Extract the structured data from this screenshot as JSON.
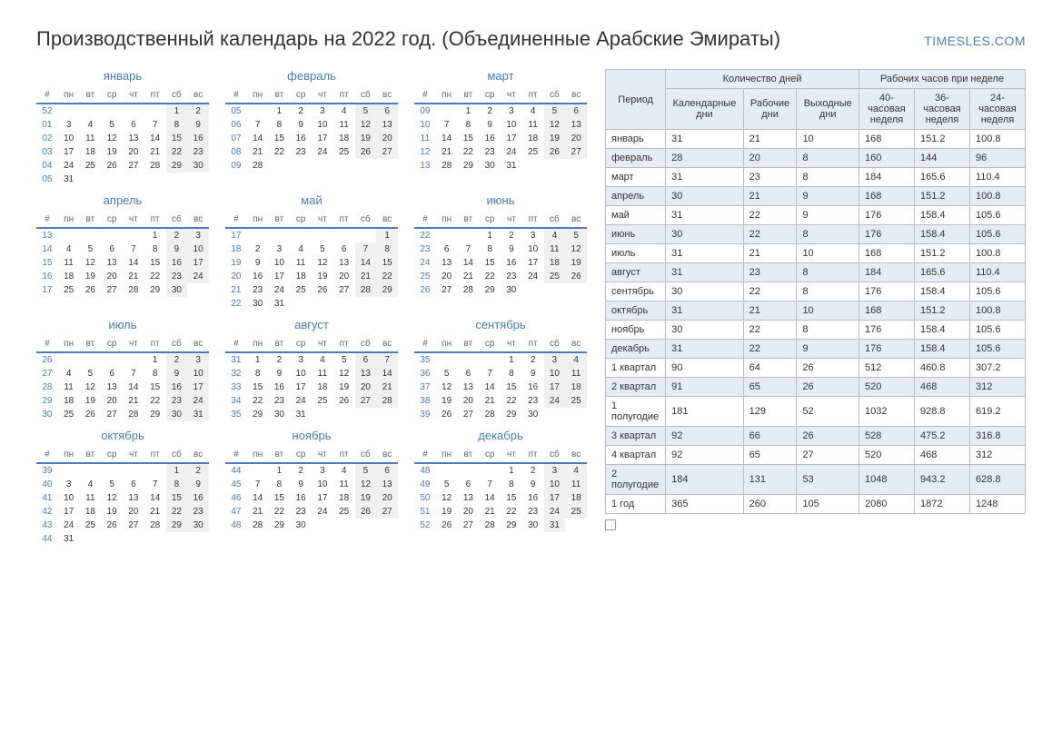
{
  "header": {
    "title": "Производственный календарь на 2022 год. (Объединенные Арабские Эмираты)",
    "brand": "TIMESLES.COM"
  },
  "colors": {
    "accent": "#4a7bb8",
    "weekend_bg": "#f0f0f0",
    "table_header_bg": "#e6ecf5",
    "border": "#bbbbbb"
  },
  "dow_labels": [
    "#",
    "пн",
    "вт",
    "ср",
    "чт",
    "пт",
    "сб",
    "вс"
  ],
  "months": [
    {
      "name": "январь",
      "weeks": [
        [
          "52",
          "",
          "",
          "",
          "",
          "",
          "1",
          "2"
        ],
        [
          "01",
          "3",
          "4",
          "5",
          "6",
          "7",
          "8",
          "9"
        ],
        [
          "02",
          "10",
          "11",
          "12",
          "13",
          "14",
          "15",
          "16"
        ],
        [
          "03",
          "17",
          "18",
          "19",
          "20",
          "21",
          "22",
          "23"
        ],
        [
          "04",
          "24",
          "25",
          "26",
          "27",
          "28",
          "29",
          "30"
        ],
        [
          "05",
          "31",
          "",
          "",
          "",
          "",
          "",
          ""
        ]
      ]
    },
    {
      "name": "февраль",
      "weeks": [
        [
          "05",
          "",
          "1",
          "2",
          "3",
          "4",
          "5",
          "6"
        ],
        [
          "06",
          "7",
          "8",
          "9",
          "10",
          "11",
          "12",
          "13"
        ],
        [
          "07",
          "14",
          "15",
          "16",
          "17",
          "18",
          "19",
          "20"
        ],
        [
          "08",
          "21",
          "22",
          "23",
          "24",
          "25",
          "26",
          "27"
        ],
        [
          "09",
          "28",
          "",
          "",
          "",
          "",
          "",
          ""
        ]
      ]
    },
    {
      "name": "март",
      "weeks": [
        [
          "09",
          "",
          "1",
          "2",
          "3",
          "4",
          "5",
          "6"
        ],
        [
          "10",
          "7",
          "8",
          "9",
          "10",
          "11",
          "12",
          "13"
        ],
        [
          "11",
          "14",
          "15",
          "16",
          "17",
          "18",
          "19",
          "20"
        ],
        [
          "12",
          "21",
          "22",
          "23",
          "24",
          "25",
          "26",
          "27"
        ],
        [
          "13",
          "28",
          "29",
          "30",
          "31",
          "",
          "",
          ""
        ]
      ]
    },
    {
      "name": "апрель",
      "weeks": [
        [
          "13",
          "",
          "",
          "",
          "",
          "1",
          "2",
          "3"
        ],
        [
          "14",
          "4",
          "5",
          "6",
          "7",
          "8",
          "9",
          "10"
        ],
        [
          "15",
          "11",
          "12",
          "13",
          "14",
          "15",
          "16",
          "17"
        ],
        [
          "16",
          "18",
          "19",
          "20",
          "21",
          "22",
          "23",
          "24"
        ],
        [
          "17",
          "25",
          "26",
          "27",
          "28",
          "29",
          "30",
          ""
        ]
      ]
    },
    {
      "name": "май",
      "weeks": [
        [
          "17",
          "",
          "",
          "",
          "",
          "",
          "",
          "1"
        ],
        [
          "18",
          "2",
          "3",
          "4",
          "5",
          "6",
          "7",
          "8"
        ],
        [
          "19",
          "9",
          "10",
          "11",
          "12",
          "13",
          "14",
          "15"
        ],
        [
          "20",
          "16",
          "17",
          "18",
          "19",
          "20",
          "21",
          "22"
        ],
        [
          "21",
          "23",
          "24",
          "25",
          "26",
          "27",
          "28",
          "29"
        ],
        [
          "22",
          "30",
          "31",
          "",
          "",
          "",
          "",
          ""
        ]
      ]
    },
    {
      "name": "июнь",
      "weeks": [
        [
          "22",
          "",
          "",
          "1",
          "2",
          "3",
          "4",
          "5"
        ],
        [
          "23",
          "6",
          "7",
          "8",
          "9",
          "10",
          "11",
          "12"
        ],
        [
          "24",
          "13",
          "14",
          "15",
          "16",
          "17",
          "18",
          "19"
        ],
        [
          "25",
          "20",
          "21",
          "22",
          "23",
          "24",
          "25",
          "26"
        ],
        [
          "26",
          "27",
          "28",
          "29",
          "30",
          "",
          "",
          ""
        ]
      ]
    },
    {
      "name": "июль",
      "weeks": [
        [
          "26",
          "",
          "",
          "",
          "",
          "1",
          "2",
          "3"
        ],
        [
          "27",
          "4",
          "5",
          "6",
          "7",
          "8",
          "9",
          "10"
        ],
        [
          "28",
          "11",
          "12",
          "13",
          "14",
          "15",
          "16",
          "17"
        ],
        [
          "29",
          "18",
          "19",
          "20",
          "21",
          "22",
          "23",
          "24"
        ],
        [
          "30",
          "25",
          "26",
          "27",
          "28",
          "29",
          "30",
          "31"
        ]
      ]
    },
    {
      "name": "август",
      "weeks": [
        [
          "31",
          "1",
          "2",
          "3",
          "4",
          "5",
          "6",
          "7"
        ],
        [
          "32",
          "8",
          "9",
          "10",
          "11",
          "12",
          "13",
          "14"
        ],
        [
          "33",
          "15",
          "16",
          "17",
          "18",
          "19",
          "20",
          "21"
        ],
        [
          "34",
          "22",
          "23",
          "24",
          "25",
          "26",
          "27",
          "28"
        ],
        [
          "35",
          "29",
          "30",
          "31",
          "",
          "",
          "",
          ""
        ]
      ]
    },
    {
      "name": "сентябрь",
      "weeks": [
        [
          "35",
          "",
          "",
          "",
          "1",
          "2",
          "3",
          "4"
        ],
        [
          "36",
          "5",
          "6",
          "7",
          "8",
          "9",
          "10",
          "11"
        ],
        [
          "37",
          "12",
          "13",
          "14",
          "15",
          "16",
          "17",
          "18"
        ],
        [
          "38",
          "19",
          "20",
          "21",
          "22",
          "23",
          "24",
          "25"
        ],
        [
          "39",
          "26",
          "27",
          "28",
          "29",
          "30",
          "",
          ""
        ]
      ]
    },
    {
      "name": "октябрь",
      "weeks": [
        [
          "39",
          "",
          "",
          "",
          "",
          "",
          "1",
          "2"
        ],
        [
          "40",
          "3",
          "4",
          "5",
          "6",
          "7",
          "8",
          "9"
        ],
        [
          "41",
          "10",
          "11",
          "12",
          "13",
          "14",
          "15",
          "16"
        ],
        [
          "42",
          "17",
          "18",
          "19",
          "20",
          "21",
          "22",
          "23"
        ],
        [
          "43",
          "24",
          "25",
          "26",
          "27",
          "28",
          "29",
          "30"
        ],
        [
          "44",
          "31",
          "",
          "",
          "",
          "",
          "",
          ""
        ]
      ]
    },
    {
      "name": "ноябрь",
      "weeks": [
        [
          "44",
          "",
          "1",
          "2",
          "3",
          "4",
          "5",
          "6"
        ],
        [
          "45",
          "7",
          "8",
          "9",
          "10",
          "11",
          "12",
          "13"
        ],
        [
          "46",
          "14",
          "15",
          "16",
          "17",
          "18",
          "19",
          "20"
        ],
        [
          "47",
          "21",
          "22",
          "23",
          "24",
          "25",
          "26",
          "27"
        ],
        [
          "48",
          "28",
          "29",
          "30",
          "",
          "",
          "",
          ""
        ]
      ]
    },
    {
      "name": "декабрь",
      "weeks": [
        [
          "48",
          "",
          "",
          "",
          "1",
          "2",
          "3",
          "4"
        ],
        [
          "49",
          "5",
          "6",
          "7",
          "8",
          "9",
          "10",
          "11"
        ],
        [
          "50",
          "12",
          "13",
          "14",
          "15",
          "16",
          "17",
          "18"
        ],
        [
          "51",
          "19",
          "20",
          "21",
          "22",
          "23",
          "24",
          "25"
        ],
        [
          "52",
          "26",
          "27",
          "28",
          "29",
          "30",
          "31",
          ""
        ]
      ]
    }
  ],
  "summary": {
    "group_headers": [
      "Количество дней",
      "Рабочих часов при неделе"
    ],
    "period_header": "Период",
    "sub_headers": [
      "Календарные дни",
      "Рабочие дни",
      "Выходные дни",
      "40-часовая неделя",
      "36-часовая неделя",
      "24-часовая неделя"
    ],
    "rows": [
      {
        "label": "январь",
        "vals": [
          "31",
          "21",
          "10",
          "168",
          "151.2",
          "100.8"
        ],
        "alt": false
      },
      {
        "label": "февраль",
        "vals": [
          "28",
          "20",
          "8",
          "160",
          "144",
          "96"
        ],
        "alt": true
      },
      {
        "label": "март",
        "vals": [
          "31",
          "23",
          "8",
          "184",
          "165.6",
          "110.4"
        ],
        "alt": false
      },
      {
        "label": "апрель",
        "vals": [
          "30",
          "21",
          "9",
          "168",
          "151.2",
          "100.8"
        ],
        "alt": true
      },
      {
        "label": "май",
        "vals": [
          "31",
          "22",
          "9",
          "176",
          "158.4",
          "105.6"
        ],
        "alt": false
      },
      {
        "label": "июнь",
        "vals": [
          "30",
          "22",
          "8",
          "176",
          "158.4",
          "105.6"
        ],
        "alt": true
      },
      {
        "label": "июль",
        "vals": [
          "31",
          "21",
          "10",
          "168",
          "151.2",
          "100.8"
        ],
        "alt": false
      },
      {
        "label": "август",
        "vals": [
          "31",
          "23",
          "8",
          "184",
          "165.6",
          "110.4"
        ],
        "alt": true
      },
      {
        "label": "сентябрь",
        "vals": [
          "30",
          "22",
          "8",
          "176",
          "158.4",
          "105.6"
        ],
        "alt": false
      },
      {
        "label": "октябрь",
        "vals": [
          "31",
          "21",
          "10",
          "168",
          "151.2",
          "100.8"
        ],
        "alt": true
      },
      {
        "label": "ноябрь",
        "vals": [
          "30",
          "22",
          "8",
          "176",
          "158.4",
          "105.6"
        ],
        "alt": false
      },
      {
        "label": "декабрь",
        "vals": [
          "31",
          "22",
          "9",
          "176",
          "158.4",
          "105.6"
        ],
        "alt": true
      },
      {
        "label": "1 квартал",
        "vals": [
          "90",
          "64",
          "26",
          "512",
          "460.8",
          "307.2"
        ],
        "alt": false
      },
      {
        "label": "2 квартал",
        "vals": [
          "91",
          "65",
          "26",
          "520",
          "468",
          "312"
        ],
        "alt": true
      },
      {
        "label": "1 полугодие",
        "vals": [
          "181",
          "129",
          "52",
          "1032",
          "928.8",
          "619.2"
        ],
        "alt": false
      },
      {
        "label": "3 квартал",
        "vals": [
          "92",
          "66",
          "26",
          "528",
          "475.2",
          "316.8"
        ],
        "alt": true
      },
      {
        "label": "4 квартал",
        "vals": [
          "92",
          "65",
          "27",
          "520",
          "468",
          "312"
        ],
        "alt": false
      },
      {
        "label": "2 полугодие",
        "vals": [
          "184",
          "131",
          "53",
          "1048",
          "943.2",
          "628.8"
        ],
        "alt": true
      },
      {
        "label": "1 год",
        "vals": [
          "365",
          "260",
          "105",
          "2080",
          "1872",
          "1248"
        ],
        "alt": false
      }
    ]
  }
}
